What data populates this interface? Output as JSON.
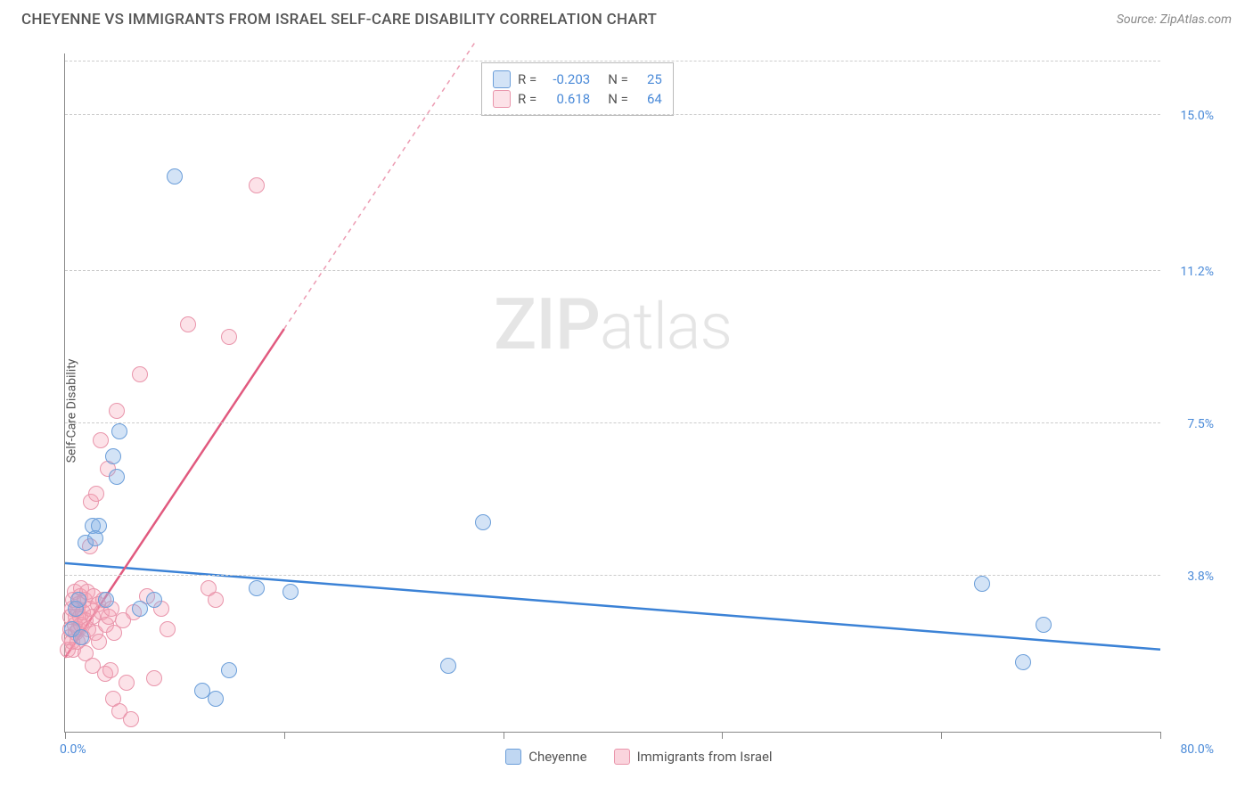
{
  "title": "CHEYENNE VS IMMIGRANTS FROM ISRAEL SELF-CARE DISABILITY CORRELATION CHART",
  "source": "Source: ZipAtlas.com",
  "y_axis_label": "Self-Care Disability",
  "watermark_bold": "ZIP",
  "watermark_light": "atlas",
  "chart": {
    "type": "scatter",
    "xlim": [
      0,
      80
    ],
    "ylim": [
      0,
      16.5
    ],
    "x_tick_labels": [
      {
        "val": 0,
        "label": "0.0%"
      },
      {
        "val": 80,
        "label": "80.0%"
      }
    ],
    "y_tick_labels": [
      {
        "val": 3.8,
        "label": "3.8%"
      },
      {
        "val": 7.5,
        "label": "7.5%"
      },
      {
        "val": 11.2,
        "label": "11.2%"
      },
      {
        "val": 15.0,
        "label": "15.0%"
      }
    ],
    "y_gridlines": [
      3.8,
      7.5,
      11.2,
      15.0,
      16.3
    ],
    "x_ticks": [
      0,
      16,
      32,
      48,
      64,
      80
    ],
    "background_color": "#ffffff",
    "grid_color": "#cccccc",
    "series": [
      {
        "name": "Cheyenne",
        "color_fill": "rgba(130,175,230,0.35)",
        "color_stroke": "#6b9ed9",
        "marker_size": 18,
        "R": "-0.203",
        "N": "25",
        "trend": {
          "x1": 0,
          "y1": 4.1,
          "x2": 80,
          "y2": 2.0,
          "color": "#3b82d6",
          "dash_from_x": null
        },
        "points": [
          [
            0.5,
            2.5
          ],
          [
            0.8,
            3.0
          ],
          [
            1.0,
            3.2
          ],
          [
            1.2,
            2.3
          ],
          [
            1.5,
            4.6
          ],
          [
            2.0,
            5.0
          ],
          [
            2.5,
            5.0
          ],
          [
            2.2,
            4.7
          ],
          [
            3.0,
            3.2
          ],
          [
            3.5,
            6.7
          ],
          [
            3.8,
            6.2
          ],
          [
            4.0,
            7.3
          ],
          [
            5.5,
            3.0
          ],
          [
            6.5,
            3.2
          ],
          [
            8.0,
            13.5
          ],
          [
            10.0,
            1.0
          ],
          [
            11.0,
            0.8
          ],
          [
            12.0,
            1.5
          ],
          [
            14.0,
            3.5
          ],
          [
            16.5,
            3.4
          ],
          [
            28.0,
            1.6
          ],
          [
            30.5,
            5.1
          ],
          [
            67.0,
            3.6
          ],
          [
            70.0,
            1.7
          ],
          [
            71.5,
            2.6
          ]
        ]
      },
      {
        "name": "Immigrants from Israel",
        "color_fill": "rgba(245,160,180,0.3)",
        "color_stroke": "#e995ab",
        "marker_size": 18,
        "R": "0.618",
        "N": "64",
        "trend": {
          "x1": 0,
          "y1": 1.8,
          "x2": 16,
          "y2": 9.8,
          "color": "#e15a7f",
          "dash_from_x": 16,
          "dash_x2": 30,
          "dash_y2": 16.8
        },
        "points": [
          [
            0.2,
            2.0
          ],
          [
            0.3,
            2.3
          ],
          [
            0.4,
            2.5
          ],
          [
            0.4,
            2.8
          ],
          [
            0.5,
            3.0
          ],
          [
            0.5,
            2.2
          ],
          [
            0.6,
            3.2
          ],
          [
            0.6,
            2.0
          ],
          [
            0.7,
            2.6
          ],
          [
            0.7,
            3.4
          ],
          [
            0.8,
            2.8
          ],
          [
            0.8,
            2.4
          ],
          [
            0.9,
            3.0
          ],
          [
            0.9,
            2.2
          ],
          [
            1.0,
            3.1
          ],
          [
            1.0,
            2.5
          ],
          [
            1.1,
            2.8
          ],
          [
            1.1,
            3.3
          ],
          [
            1.2,
            2.6
          ],
          [
            1.2,
            3.5
          ],
          [
            1.3,
            2.9
          ],
          [
            1.3,
            2.3
          ],
          [
            1.4,
            3.2
          ],
          [
            1.5,
            2.7
          ],
          [
            1.5,
            1.9
          ],
          [
            1.6,
            3.4
          ],
          [
            1.7,
            2.5
          ],
          [
            1.8,
            3.0
          ],
          [
            1.8,
            4.5
          ],
          [
            1.9,
            5.6
          ],
          [
            2.0,
            2.8
          ],
          [
            2.0,
            1.6
          ],
          [
            2.1,
            3.3
          ],
          [
            2.2,
            2.4
          ],
          [
            2.3,
            5.8
          ],
          [
            2.4,
            3.1
          ],
          [
            2.5,
            2.2
          ],
          [
            2.6,
            7.1
          ],
          [
            2.7,
            2.9
          ],
          [
            2.8,
            3.2
          ],
          [
            2.9,
            1.4
          ],
          [
            3.0,
            2.6
          ],
          [
            3.1,
            6.4
          ],
          [
            3.2,
            2.8
          ],
          [
            3.3,
            1.5
          ],
          [
            3.4,
            3.0
          ],
          [
            3.5,
            0.8
          ],
          [
            3.6,
            2.4
          ],
          [
            3.8,
            7.8
          ],
          [
            4.0,
            0.5
          ],
          [
            4.2,
            2.7
          ],
          [
            4.5,
            1.2
          ],
          [
            4.8,
            0.3
          ],
          [
            5.0,
            2.9
          ],
          [
            5.5,
            8.7
          ],
          [
            6.0,
            3.3
          ],
          [
            6.5,
            1.3
          ],
          [
            7.0,
            3.0
          ],
          [
            7.5,
            2.5
          ],
          [
            9.0,
            9.9
          ],
          [
            10.5,
            3.5
          ],
          [
            12.0,
            9.6
          ],
          [
            14.0,
            13.3
          ],
          [
            11.0,
            3.2
          ]
        ]
      }
    ]
  },
  "legend_top_labels": {
    "R": "R =",
    "N": "N ="
  },
  "legend_bottom": [
    {
      "label": "Cheyenne",
      "fill": "rgba(130,175,230,0.5)",
      "stroke": "#6b9ed9"
    },
    {
      "label": "Immigrants from Israel",
      "fill": "rgba(245,160,180,0.45)",
      "stroke": "#e995ab"
    }
  ]
}
